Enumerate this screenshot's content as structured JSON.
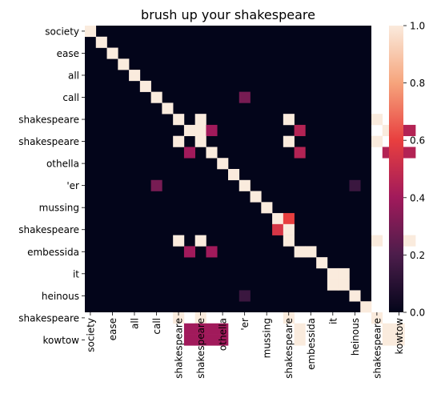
{
  "chart_data": {
    "type": "heatmap",
    "title": "brush up your shakespeare",
    "xlabel": "",
    "ylabel": "",
    "tokens": [
      "society",
      "shakespeare",
      "ease",
      "shakespeare",
      "all",
      "othella",
      "call",
      "shakespeare",
      "shakespeare",
      "'er",
      "shakespeare",
      "mussing",
      "shakespeare",
      "mussing",
      "othella",
      "shakespeare",
      "embessida",
      "embessida",
      "it",
      "it",
      "shakespeare",
      "heinous",
      "shakespeare",
      "shakespeare",
      "kowtow",
      "kowtow"
    ],
    "x_tick_labels": [
      "society",
      "ease",
      "all",
      "call",
      "shakespeare",
      "shakespeare",
      "othella",
      "'er",
      "mussing",
      "shakespeare",
      "embessida",
      "it",
      "heinous",
      "shakespeare",
      "kowtow"
    ],
    "y_tick_labels": [
      "society",
      "ease",
      "all",
      "call",
      "shakespeare",
      "shakespeare",
      "othella",
      "'er",
      "mussing",
      "shakespeare",
      "embessida",
      "it",
      "heinous",
      "shakespeare",
      "kowtow"
    ],
    "cells": [
      [
        0,
        0,
        1.0
      ],
      [
        1,
        1,
        1.0
      ],
      [
        2,
        2,
        1.0
      ],
      [
        3,
        3,
        1.0
      ],
      [
        4,
        4,
        1.0
      ],
      [
        5,
        5,
        1.0
      ],
      [
        6,
        6,
        1.0
      ],
      [
        6,
        14,
        0.3
      ],
      [
        7,
        7,
        1.0
      ],
      [
        8,
        8,
        1.0
      ],
      [
        8,
        10,
        1.0
      ],
      [
        8,
        18,
        1.0
      ],
      [
        8,
        26,
        1.0
      ],
      [
        9,
        9,
        1.0
      ],
      [
        9,
        10,
        1.0
      ],
      [
        9,
        11,
        0.4
      ],
      [
        9,
        19,
        0.45
      ],
      [
        9,
        27,
        1.0
      ],
      [
        9,
        28,
        0.45
      ],
      [
        9,
        29,
        0.45
      ],
      [
        10,
        8,
        1.0
      ],
      [
        10,
        10,
        1.0
      ],
      [
        10,
        18,
        1.0
      ],
      [
        10,
        26,
        1.0
      ],
      [
        11,
        9,
        0.4
      ],
      [
        11,
        11,
        1.0
      ],
      [
        11,
        19,
        0.45
      ],
      [
        11,
        27,
        0.45
      ],
      [
        11,
        28,
        0.45
      ],
      [
        11,
        29,
        0.45
      ],
      [
        12,
        12,
        1.0
      ],
      [
        13,
        13,
        1.0
      ],
      [
        14,
        6,
        0.3
      ],
      [
        14,
        14,
        1.0
      ],
      [
        14,
        24,
        0.15
      ],
      [
        15,
        15,
        1.0
      ],
      [
        16,
        16,
        1.0
      ],
      [
        17,
        17,
        1.0
      ],
      [
        17,
        18,
        0.6
      ],
      [
        18,
        17,
        0.55
      ],
      [
        18,
        18,
        1.0
      ],
      [
        19,
        8,
        1.0
      ],
      [
        19,
        10,
        1.0
      ],
      [
        19,
        18,
        1.0
      ],
      [
        19,
        26,
        1.0
      ],
      [
        19,
        28,
        1.0
      ],
      [
        19,
        29,
        1.0
      ],
      [
        20,
        9,
        0.4
      ],
      [
        20,
        11,
        0.4
      ],
      [
        20,
        19,
        1.0
      ],
      [
        20,
        20,
        1.0
      ],
      [
        21,
        21,
        1.0
      ],
      [
        22,
        22,
        1.0
      ],
      [
        22,
        23,
        1.0
      ],
      [
        23,
        22,
        1.0
      ],
      [
        23,
        23,
        1.0
      ],
      [
        24,
        14,
        0.15
      ],
      [
        24,
        24,
        1.0
      ],
      [
        25,
        25,
        1.0
      ],
      [
        26,
        8,
        1.0
      ],
      [
        26,
        10,
        1.0
      ],
      [
        26,
        18,
        1.0
      ],
      [
        26,
        26,
        1.0
      ],
      [
        27,
        9,
        0.4
      ],
      [
        27,
        10,
        0.4
      ],
      [
        27,
        11,
        0.4
      ],
      [
        27,
        12,
        0.4
      ],
      [
        27,
        19,
        1.0
      ],
      [
        27,
        27,
        1.0
      ],
      [
        27,
        28,
        1.0
      ],
      [
        28,
        9,
        0.4
      ],
      [
        28,
        10,
        0.4
      ],
      [
        28,
        11,
        0.4
      ],
      [
        28,
        12,
        0.4
      ],
      [
        28,
        19,
        1.0
      ],
      [
        28,
        27,
        1.0
      ],
      [
        28,
        28,
        1.0
      ]
    ],
    "colorbar": {
      "min": 0.0,
      "max": 1.0,
      "ticks": [
        "0.0",
        "0.2",
        "0.4",
        "0.6",
        "0.8",
        "1.0"
      ],
      "colormap": "rocket"
    }
  }
}
